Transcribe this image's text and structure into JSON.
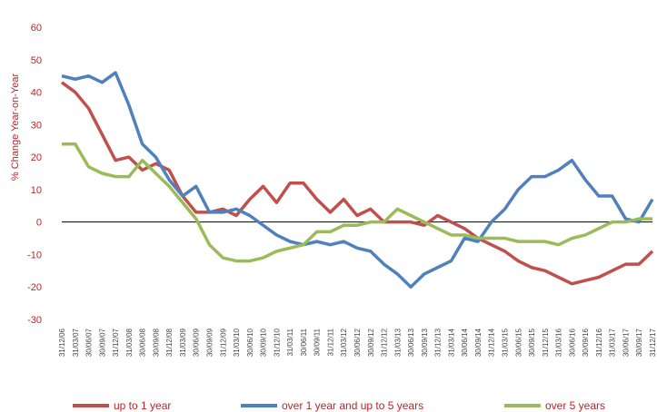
{
  "chart_data": {
    "type": "line",
    "y_label": "% Change Year-on-Year",
    "categories": [
      "31/12/06",
      "31/03/07",
      "30/06/07",
      "30/09/07",
      "31/12/07",
      "31/03/08",
      "30/06/08",
      "30/09/08",
      "31/12/08",
      "31/03/09",
      "30/06/09",
      "30/09/09",
      "31/12/09",
      "31/03/10",
      "30/06/10",
      "30/09/10",
      "31/12/10",
      "31/03/11",
      "30/06/11",
      "30/09/11",
      "31/12/11",
      "31/03/12",
      "30/06/12",
      "30/09/12",
      "31/12/12",
      "31/03/13",
      "30/06/13",
      "30/09/13",
      "31/12/13",
      "31/03/14",
      "30/06/14",
      "30/09/14",
      "31/12/14",
      "31/03/15",
      "30/06/15",
      "30/09/15",
      "31/12/15",
      "31/03/16",
      "30/06/16",
      "30/09/16",
      "31/12/16",
      "31/03/17",
      "30/06/17",
      "30/09/17",
      "31/12/17"
    ],
    "series": [
      {
        "name": "up to 1 year",
        "color": "#c0504d",
        "values": [
          43,
          40,
          35,
          27,
          19,
          20,
          16,
          18,
          16,
          8,
          3,
          3,
          4,
          2,
          7,
          11,
          6,
          12,
          12,
          7,
          3,
          7,
          2,
          4,
          0,
          0,
          0,
          -1,
          2,
          0,
          -2,
          -5,
          -7,
          -9,
          -12,
          -14,
          -15,
          -17,
          -19,
          -18,
          -17,
          -15,
          -13,
          -13,
          -9
        ]
      },
      {
        "name": "over 1 year and up to 5 years",
        "color": "#4f81bd",
        "values": [
          45,
          44,
          45,
          43,
          46,
          36,
          24,
          20,
          13,
          8,
          11,
          3,
          3,
          4,
          2,
          -1,
          -4,
          -6,
          -7,
          -6,
          -7,
          -6,
          -8,
          -9,
          -13,
          -16,
          -20,
          -16,
          -14,
          -12,
          -5,
          -6,
          0,
          4,
          10,
          14,
          14,
          16,
          19,
          13,
          8,
          8,
          1,
          0,
          7
        ]
      },
      {
        "name": "over 5 years",
        "color": "#9bbb59",
        "values": [
          24,
          24,
          17,
          15,
          14,
          14,
          19,
          15,
          11,
          6,
          1,
          -7,
          -11,
          -12,
          -12,
          -11,
          -9,
          -8,
          -7,
          -3,
          -3,
          -1,
          -1,
          0,
          0,
          4,
          2,
          0,
          -2,
          -4,
          -4,
          -5,
          -5,
          -5,
          -6,
          -6,
          -6,
          -7,
          -5,
          -4,
          -2,
          0,
          0,
          1,
          1
        ]
      }
    ],
    "ylim": [
      -30,
      60
    ],
    "yticks": [
      -30,
      -20,
      -10,
      0,
      10,
      20,
      30,
      40,
      50,
      60
    ],
    "grid": false
  }
}
